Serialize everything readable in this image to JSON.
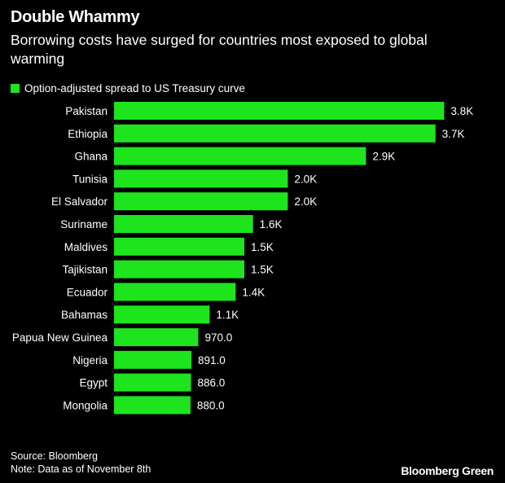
{
  "chart_data": {
    "type": "bar",
    "orientation": "horizontal",
    "title": "Double Whammy",
    "subtitle": "Borrowing costs have surged for countries most exposed to global warming",
    "categories": [
      "Pakistan",
      "Ethiopia",
      "Ghana",
      "Tunisia",
      "El Salvador",
      "Suriname",
      "Maldives",
      "Tajikistan",
      "Ecuador",
      "Bahamas",
      "Papua New Guinea",
      "Nigeria",
      "Egypt",
      "Mongolia"
    ],
    "series": [
      {
        "name": "Option-adjusted spread to US Treasury curve",
        "values": [
          3800,
          3700,
          2900,
          2000,
          2000,
          1600,
          1500,
          1500,
          1400,
          1100,
          970,
          891,
          886,
          880
        ],
        "labels": [
          "3.8K",
          "3.7K",
          "2.9K",
          "2.0K",
          "2.0K",
          "1.6K",
          "1.5K",
          "1.5K",
          "1.4K",
          "1.1K",
          "970.0",
          "891.0",
          "886.0",
          "880.0"
        ]
      }
    ],
    "color": "#1de41d",
    "legend": "top-left",
    "grid": false,
    "xlim": [
      0,
      3900
    ]
  },
  "footer": {
    "source": "Source: Bloomberg",
    "note": "Note: Data as of November 8th",
    "brand": "Bloomberg Green"
  }
}
